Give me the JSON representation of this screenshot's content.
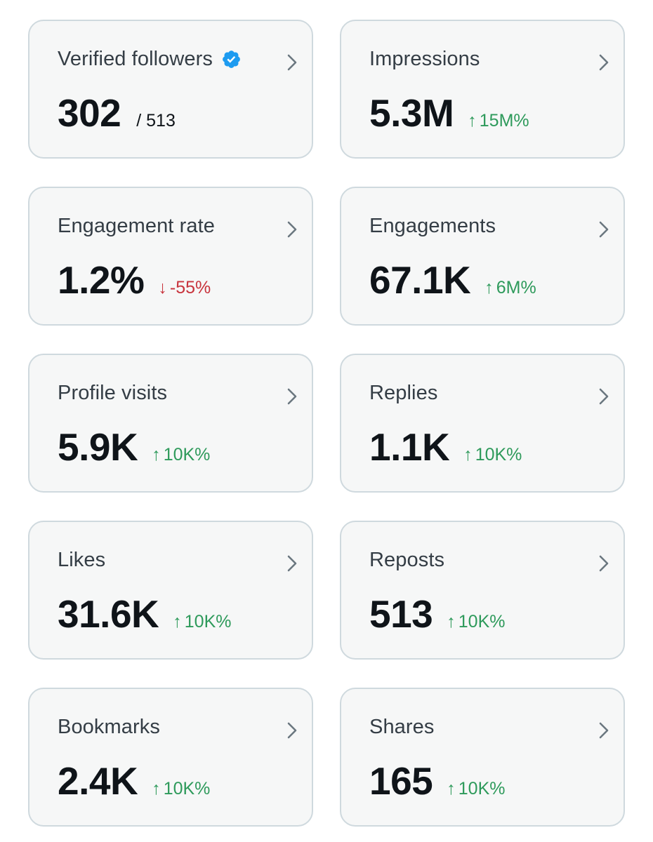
{
  "colors": {
    "card_bg": "#f6f7f7",
    "card_border": "#cfd9de",
    "label": "#343d45",
    "value": "#0f1419",
    "positive": "#2e9a5b",
    "negative": "#c8343d",
    "verified_badge": "#1d9bf0"
  },
  "metrics": [
    {
      "label": "Verified followers",
      "icon": "verified-badge-icon",
      "value": "302",
      "total": "/ 513"
    },
    {
      "label": "Impressions",
      "value": "5.3M",
      "change_arrow": "↑",
      "change": "15M%",
      "direction": "up"
    },
    {
      "label": "Engagement rate",
      "value": "1.2%",
      "change_arrow": "↓",
      "change": "-55%",
      "direction": "down"
    },
    {
      "label": "Engagements",
      "value": "67.1K",
      "change_arrow": "↑",
      "change": "6M%",
      "direction": "up"
    },
    {
      "label": "Profile visits",
      "value": "5.9K",
      "change_arrow": "↑",
      "change": "10K%",
      "direction": "up"
    },
    {
      "label": "Replies",
      "value": "1.1K",
      "change_arrow": "↑",
      "change": "10K%",
      "direction": "up"
    },
    {
      "label": "Likes",
      "value": "31.6K",
      "change_arrow": "↑",
      "change": "10K%",
      "direction": "up"
    },
    {
      "label": "Reposts",
      "value": "513",
      "change_arrow": "↑",
      "change": "10K%",
      "direction": "up"
    },
    {
      "label": "Bookmarks",
      "value": "2.4K",
      "change_arrow": "↑",
      "change": "10K%",
      "direction": "up"
    },
    {
      "label": "Shares",
      "value": "165",
      "change_arrow": "↑",
      "change": "10K%",
      "direction": "up"
    }
  ]
}
